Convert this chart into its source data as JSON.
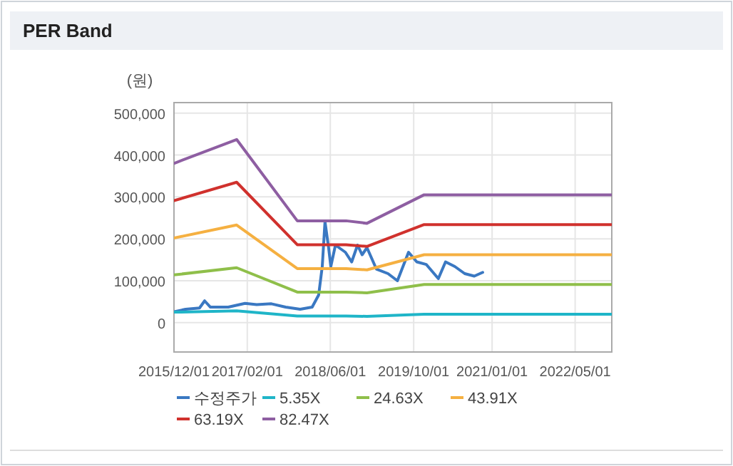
{
  "chart_data": {
    "type": "line",
    "title": "PER Band",
    "ylabel": "(원)",
    "xlim": [
      "2015-12-01",
      "2022-12-01"
    ],
    "xticks": [
      {
        "value": "2015-12-01",
        "label": "2015/12/01"
      },
      {
        "value": "2017-02-01",
        "label": "2017/02/01"
      },
      {
        "value": "2018-06-01",
        "label": "2018/06/01"
      },
      {
        "value": "2019-10-01",
        "label": "2019/10/01"
      },
      {
        "value": "2021-01-01",
        "label": "2021/01/01"
      },
      {
        "value": "2022-05-01",
        "label": "2022/05/01"
      }
    ],
    "ylim": [
      -70000,
      525000
    ],
    "yticks": [
      0,
      {
        "value": 100000,
        "label": "100,000"
      },
      {
        "value": 200000,
        "label": "200,000"
      },
      {
        "value": 300000,
        "label": "300,000"
      },
      {
        "value": 400000,
        "label": "400,000"
      },
      {
        "value": 500000,
        "label": "500,000"
      }
    ],
    "grid": true,
    "legend": "bottom",
    "x": [
      "2015-12-01",
      "2016-12-01",
      "2017-11-20",
      "2018-09-01",
      "2019-01-01",
      "2019-12-01",
      "2022-12-01"
    ],
    "series": [
      {
        "name": "수정주가",
        "color": "#3a78c2",
        "x": [
          "2015-12-01",
          "2016-02-07",
          "2016-04-28",
          "2016-05-28",
          "2016-07-01",
          "2016-10-13",
          "2017-01-19",
          "2017-03-28",
          "2017-06-22",
          "2017-09-13",
          "2017-12-07",
          "2018-02-15",
          "2018-03-25",
          "2018-04-15",
          "2018-05-01",
          "2018-05-22",
          "2018-06-04",
          "2018-07-01",
          "2018-08-28",
          "2018-10-04",
          "2018-11-07",
          "2018-12-04",
          "2019-01-01",
          "2019-02-25",
          "2019-05-04",
          "2019-06-28",
          "2019-09-01",
          "2019-10-19",
          "2019-12-13",
          "2020-02-22",
          "2020-04-04",
          "2020-05-28",
          "2020-07-25",
          "2020-09-19",
          "2020-11-07"
        ],
        "values": [
          26000,
          32000,
          35000,
          52000,
          37000,
          37000,
          46000,
          43000,
          45000,
          37000,
          32000,
          37000,
          66000,
          134000,
          241000,
          179000,
          134000,
          185000,
          168000,
          145000,
          185000,
          162000,
          179000,
          128000,
          117000,
          100000,
          168000,
          145000,
          139000,
          105000,
          145000,
          134000,
          117000,
          111000,
          120000
        ]
      },
      {
        "name": "5.35X",
        "color": "#1fb5c8",
        "values": [
          25000,
          28000,
          16000,
          16000,
          15000,
          20000,
          20000
        ]
      },
      {
        "name": "24.63X",
        "color": "#8fbf4a",
        "values": [
          114000,
          131000,
          73000,
          73000,
          71000,
          91000,
          91000
        ]
      },
      {
        "name": "43.91X",
        "color": "#f5b041",
        "values": [
          202000,
          233000,
          129000,
          129000,
          126000,
          162000,
          162000
        ]
      },
      {
        "name": "63.19X",
        "color": "#d0312d",
        "values": [
          291000,
          335000,
          186000,
          186000,
          182000,
          234000,
          234000
        ]
      },
      {
        "name": "82.47X",
        "color": "#8e5ea2",
        "values": [
          380000,
          437000,
          243000,
          243000,
          237000,
          305000,
          305000
        ]
      }
    ]
  }
}
